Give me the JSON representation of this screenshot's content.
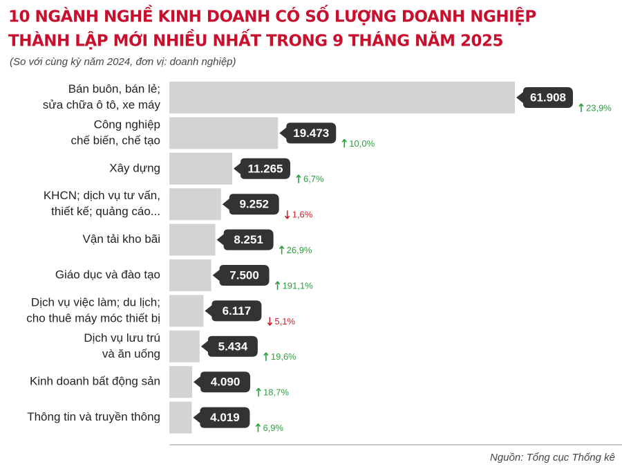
{
  "chart_data": {
    "type": "bar",
    "orientation": "horizontal",
    "title": [
      "10 NGÀNH NGHỀ KINH DOANH CÓ SỐ LƯỢNG DOANH NGHIỆP",
      "THÀNH LẬP MỚI NHIỀU NHẤT TRONG 9 THÁNG NĂM 2025"
    ],
    "subtitle": "(So với cùng kỳ năm 2024, đơn vị: doanh nghiệp)",
    "source": "Nguồn: Tổng cục Thống kê",
    "categories": [
      [
        "Bán buôn, bán lẻ;",
        "sửa chữa ô tô, xe máy"
      ],
      [
        "Công nghiệp",
        "chế biến, chế tạo"
      ],
      [
        "Xây dựng"
      ],
      [
        "KHCN; dịch vụ tư vấn,",
        "thiết kế; quảng cáo..."
      ],
      [
        "Vận tải kho bãi"
      ],
      [
        "Giáo dục và đào tạo"
      ],
      [
        "Dịch vụ việc làm; du lịch;",
        "cho thuê máy móc thiết bị"
      ],
      [
        "Dịch vụ lưu trú",
        "và ăn uống"
      ],
      [
        "Kinh doanh bất động sản"
      ],
      [
        "Thông tin và truyền thông"
      ]
    ],
    "values": [
      61908,
      19473,
      11265,
      9252,
      8251,
      7500,
      6117,
      5434,
      4090,
      4019
    ],
    "value_labels": [
      "61.908",
      "19.473",
      "11.265",
      "9.252",
      "8.251",
      "7.500",
      "6.117",
      "5.434",
      "4.090",
      "4.019"
    ],
    "changes": [
      23.9,
      10.0,
      6.7,
      -1.6,
      26.9,
      191.1,
      -5.1,
      19.6,
      18.7,
      6.9
    ],
    "change_labels": [
      "23,9%",
      "10,0%",
      "6,7%",
      "1,6%",
      "26,9%",
      "191,1%",
      "5,1%",
      "19,6%",
      "18,7%",
      "6,9%"
    ],
    "color": "#d3d3d3",
    "label_color": "#333333",
    "up_color": "#2e9e3e",
    "down_color": "#d0202a",
    "title_color": "#c8102e"
  }
}
